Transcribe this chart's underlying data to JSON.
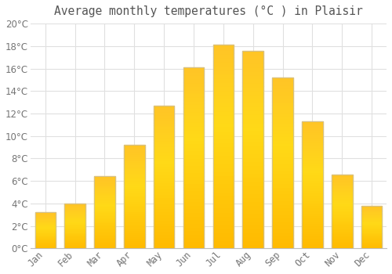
{
  "title": "Average monthly temperatures (°C ) in Plaisir",
  "months": [
    "Jan",
    "Feb",
    "Mar",
    "Apr",
    "May",
    "Jun",
    "Jul",
    "Aug",
    "Sep",
    "Oct",
    "Nov",
    "Dec"
  ],
  "values": [
    3.2,
    4.0,
    6.4,
    9.2,
    12.7,
    16.1,
    18.1,
    17.6,
    15.2,
    11.3,
    6.6,
    3.8
  ],
  "bar_color_light": "#FFB300",
  "bar_color_dark": "#E65100",
  "bar_edge_color": "#9E9E9E",
  "background_color": "#FFFFFF",
  "grid_color": "#E0E0E0",
  "text_color": "#757575",
  "title_color": "#555555",
  "ylim": [
    0,
    20
  ],
  "yticks": [
    0,
    2,
    4,
    6,
    8,
    10,
    12,
    14,
    16,
    18,
    20
  ],
  "title_fontsize": 10.5,
  "tick_fontsize": 8.5
}
